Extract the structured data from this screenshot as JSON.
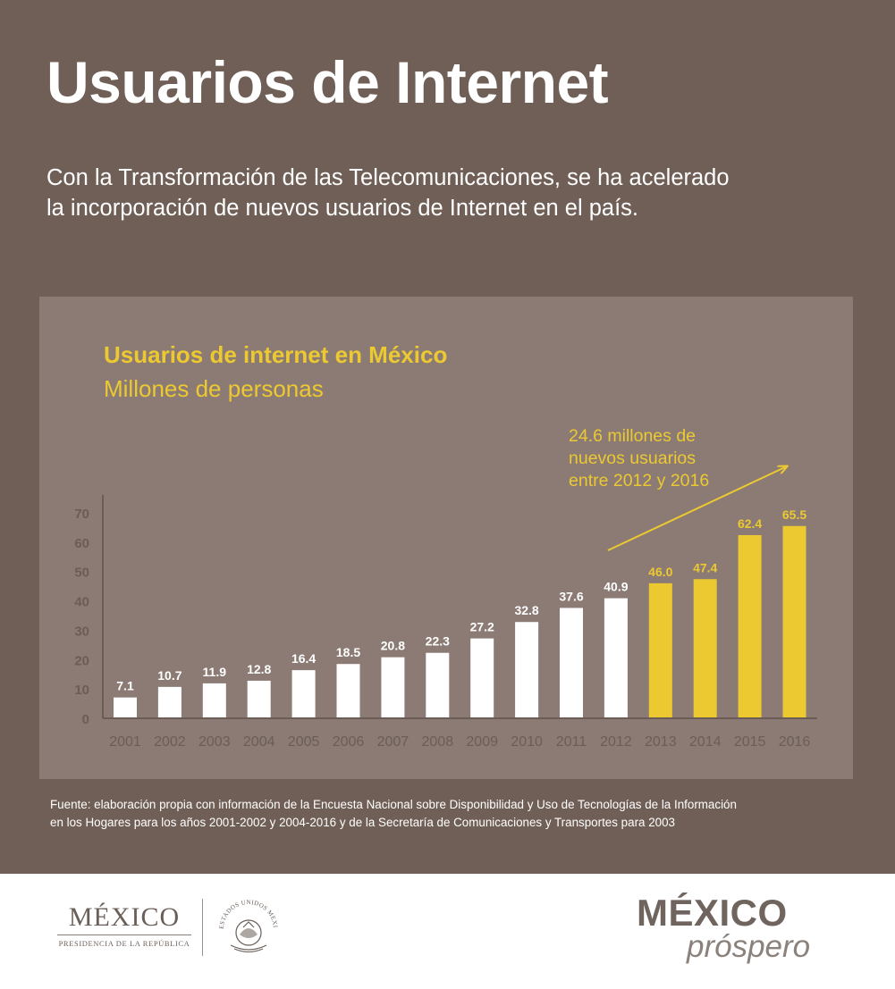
{
  "header": {
    "title": "Usuarios de Internet",
    "subtitle_line1": "Con la Transformación de las Telecomunicaciones, se ha acelerado",
    "subtitle_line2": "la incorporación de nuevos usuarios de Internet en el país."
  },
  "chart_data": {
    "type": "bar",
    "title": "Usuarios de internet en México",
    "subtitle": "Millones de personas",
    "categories": [
      "2001",
      "2002",
      "2003",
      "2004",
      "2005",
      "2006",
      "2007",
      "2008",
      "2009",
      "2010",
      "2011",
      "2012",
      "2013",
      "2014",
      "2015",
      "2016"
    ],
    "values": [
      7.1,
      10.7,
      11.9,
      12.8,
      16.4,
      18.5,
      20.8,
      22.3,
      27.2,
      32.8,
      37.6,
      40.9,
      46.0,
      47.4,
      62.4,
      65.5
    ],
    "value_labels": [
      "7.1",
      "10.7",
      "11.9",
      "12.8",
      "16.4",
      "18.5",
      "20.8",
      "22.3",
      "27.2",
      "32.8",
      "37.6",
      "40.9",
      "46.0",
      "47.4",
      "62.4",
      "65.5"
    ],
    "highlight_from": "2013",
    "yticks": [
      "0",
      "10",
      "20",
      "30",
      "40",
      "50",
      "60",
      "70"
    ],
    "ylim": [
      0,
      70
    ],
    "grid": false,
    "colors": {
      "base": "#ffffff",
      "highlight": "#ecc931",
      "axis_text": "#6b5d56"
    },
    "annotation": {
      "line1": "24.6 millones de",
      "line2": "nuevos usuarios",
      "line3": "entre 2012 y 2016"
    }
  },
  "source": {
    "line1": "Fuente: elaboración propia con información de la Encuesta Nacional sobre Disponibilidad y Uso de Tecnologías de la Información",
    "line2": "en los Hogares para los años 2001-2002 y 2004-2016 y de la Secretaría de Comunicaciones y Transportes para 2003"
  },
  "footer": {
    "left_logo_word": "MÉXICO",
    "left_logo_sub": "PRESIDENCIA DE LA REPÚBLICA",
    "seal_text": "ESTADOS UNIDOS MEXICANOS",
    "right_logo_word": "MÉXICO",
    "right_logo_sub": "próspero"
  }
}
